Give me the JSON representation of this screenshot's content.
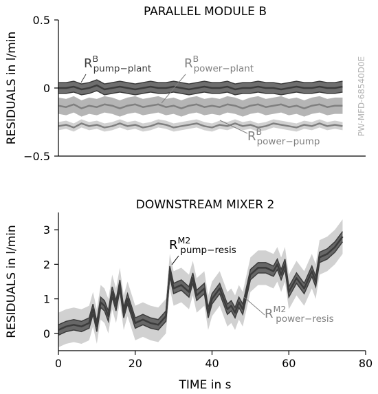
{
  "colors": {
    "axis": "#000000",
    "dark_line": "#3c3c3c",
    "dark_band": "#555555",
    "mid_line": "#808080",
    "light_band": "#a8a8a8",
    "outer_band": "#cccccc",
    "watermark": "#b4b4b4"
  },
  "watermark": "PW-MFD-68540D0E",
  "chart_data": [
    {
      "type": "line",
      "title": "PARALLEL MODULE B",
      "ylabel": "RESIDUALS in l/min",
      "xlabel": "",
      "xlim": [
        0,
        80
      ],
      "ylim": [
        -0.5,
        0.5
      ],
      "yticks": [
        0.5,
        0,
        -0.5
      ],
      "ytick_labels": [
        "0.5",
        "0",
        "−0.5"
      ],
      "x": [
        0,
        2,
        4,
        6,
        8,
        10,
        12,
        14,
        16,
        18,
        20,
        22,
        24,
        26,
        28,
        30,
        32,
        34,
        36,
        38,
        40,
        42,
        44,
        46,
        48,
        50,
        52,
        54,
        56,
        58,
        60,
        62,
        64,
        66,
        68,
        70,
        72,
        74
      ],
      "series": [
        {
          "name": "R^B_{pump−plant}",
          "label_main": "R",
          "label_sup": "B",
          "label_sub": "pump−plant",
          "style": "dark",
          "values": [
            0.0,
            0.0,
            0.01,
            -0.01,
            0.0,
            0.02,
            -0.01,
            0.0,
            0.01,
            0.0,
            -0.01,
            0.0,
            0.01,
            0.0,
            0.0,
            0.01,
            0.0,
            -0.01,
            0.0,
            0.01,
            0.0,
            0.0,
            0.01,
            -0.01,
            0.0,
            0.0,
            0.01,
            0.0,
            0.0,
            -0.01,
            0.0,
            0.01,
            0.0,
            0.0,
            0.01,
            0.0,
            0.0,
            0.01
          ],
          "band": 0.04
        },
        {
          "name": "R^B_{power−plant}",
          "label_main": "R",
          "label_sup": "B",
          "label_sub": "power−plant",
          "style": "mid",
          "values": [
            -0.13,
            -0.14,
            -0.12,
            -0.15,
            -0.13,
            -0.14,
            -0.12,
            -0.13,
            -0.15,
            -0.13,
            -0.12,
            -0.14,
            -0.13,
            -0.12,
            -0.14,
            -0.13,
            -0.15,
            -0.13,
            -0.12,
            -0.14,
            -0.13,
            -0.14,
            -0.12,
            -0.13,
            -0.15,
            -0.13,
            -0.12,
            -0.14,
            -0.13,
            -0.12,
            -0.14,
            -0.13,
            -0.15,
            -0.13,
            -0.12,
            -0.14,
            -0.13,
            -0.13
          ],
          "band": 0.06
        },
        {
          "name": "R^B_{power−pump}",
          "label_main": "R",
          "label_sup": "B",
          "label_sub": "power−pump",
          "style": "light",
          "values": [
            -0.28,
            -0.27,
            -0.29,
            -0.26,
            -0.28,
            -0.27,
            -0.29,
            -0.28,
            -0.26,
            -0.28,
            -0.27,
            -0.29,
            -0.28,
            -0.26,
            -0.27,
            -0.29,
            -0.28,
            -0.27,
            -0.26,
            -0.28,
            -0.29,
            -0.27,
            -0.28,
            -0.26,
            -0.28,
            -0.27,
            -0.29,
            -0.28,
            -0.26,
            -0.27,
            -0.28,
            -0.29,
            -0.27,
            -0.28,
            -0.26,
            -0.28,
            -0.27,
            -0.28
          ],
          "band": 0.03
        }
      ]
    },
    {
      "type": "line",
      "title": "DOWNSTREAM MIXER 2",
      "ylabel": "RESIDUALS in l/min",
      "xlabel": "TIME in s",
      "xlim": [
        0,
        80
      ],
      "ylim": [
        -0.5,
        3.5
      ],
      "yticks": [
        0,
        1,
        2,
        3
      ],
      "ytick_labels": [
        "0",
        "1",
        "2",
        "3"
      ],
      "xticks": [
        0,
        20,
        40,
        60,
        80
      ],
      "xtick_labels": [
        "0",
        "20",
        "40",
        "60",
        "80"
      ],
      "x": [
        0,
        2,
        4,
        6,
        8,
        9,
        10,
        11,
        12,
        13,
        14,
        15,
        16,
        17,
        18,
        20,
        22,
        24,
        26,
        28,
        29,
        30,
        32,
        34,
        35,
        36,
        38,
        39,
        40,
        42,
        44,
        45,
        46,
        47,
        48,
        50,
        52,
        54,
        56,
        57,
        58,
        59,
        60,
        62,
        64,
        66,
        67,
        68,
        70,
        72,
        74
      ],
      "series": [
        {
          "name": "R^{M2}_{pump−resis}",
          "label_main": "R",
          "label_sup": "M2",
          "label_sub": "pump−resis",
          "style": "dark",
          "values": [
            0.1,
            0.2,
            0.25,
            0.2,
            0.3,
            0.7,
            0.2,
            0.9,
            0.8,
            0.5,
            1.2,
            0.8,
            1.4,
            0.6,
            1.0,
            0.3,
            0.4,
            0.3,
            0.25,
            0.5,
            1.8,
            1.3,
            1.4,
            1.2,
            1.6,
            1.1,
            1.3,
            0.6,
            1.0,
            1.3,
            0.7,
            0.8,
            0.6,
            0.9,
            0.7,
            1.7,
            1.9,
            1.9,
            1.8,
            2.0,
            1.7,
            2.0,
            1.2,
            1.6,
            1.3,
            1.8,
            1.5,
            2.2,
            2.3,
            2.5,
            2.8
          ],
          "band": 0.15
        },
        {
          "name": "R^{M2}_{power−resis}",
          "label_main": "R",
          "label_sup": "M2",
          "label_sub": "power−resis",
          "style": "light",
          "values": [
            0.1,
            0.2,
            0.25,
            0.2,
            0.3,
            0.7,
            0.2,
            0.9,
            0.8,
            0.5,
            1.2,
            0.8,
            1.4,
            0.6,
            1.0,
            0.3,
            0.4,
            0.3,
            0.25,
            0.5,
            1.8,
            1.3,
            1.4,
            1.2,
            1.6,
            1.1,
            1.3,
            0.6,
            1.0,
            1.3,
            0.7,
            0.8,
            0.6,
            0.9,
            0.7,
            1.7,
            1.9,
            1.9,
            1.8,
            2.0,
            1.7,
            2.0,
            1.2,
            1.6,
            1.3,
            1.8,
            1.5,
            2.2,
            2.3,
            2.5,
            2.8
          ],
          "band": 0.5
        }
      ]
    }
  ]
}
